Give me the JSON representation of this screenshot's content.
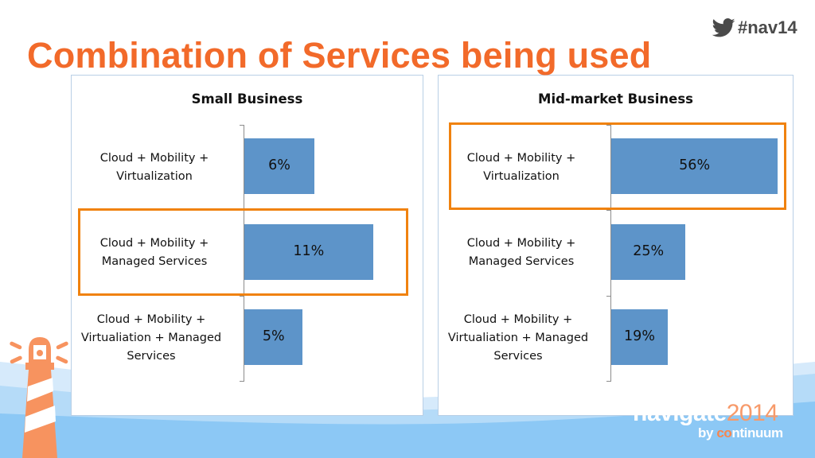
{
  "slide": {
    "title": "Combination of Services being used",
    "hashtag": "#nav14",
    "hashtag_icon": "twitter-bird-icon",
    "brand": {
      "name": "navigate",
      "year": "2014",
      "by": "by ",
      "company_accent": "co",
      "company_rest": "ntinuum"
    },
    "colors": {
      "title": "#f26a2a",
      "bar": "#5d94c9",
      "highlight": "#f0820f",
      "wave_light": "#d6eafb",
      "wave_dark": "#8cc8f5"
    }
  },
  "chart_data": [
    {
      "type": "bar",
      "orientation": "horizontal",
      "title": "Small Business",
      "categories": [
        "Cloud + Mobility +\nVirtualization",
        "Cloud + Mobility +\nManaged Services",
        "Cloud + Mobility +\nVirtualiation + Managed\nServices"
      ],
      "values": [
        6,
        11,
        5
      ],
      "data_labels": [
        "6%",
        "11%",
        "5%"
      ],
      "unit": "%",
      "xlim": [
        0,
        14.5
      ],
      "highlighted_category": 1,
      "grid": false,
      "legend": "none",
      "xlabel": "",
      "ylabel": ""
    },
    {
      "type": "bar",
      "orientation": "horizontal",
      "title": "Mid-market Business",
      "categories": [
        "Cloud + Mobility +\nVirtualization",
        "Cloud + Mobility +\nManaged Services",
        "Cloud + Mobility +\nVirtualiation + Managed\nServices"
      ],
      "values": [
        56,
        25,
        19
      ],
      "data_labels": [
        "56%",
        "25%",
        "19%"
      ],
      "unit": "%",
      "xlim": [
        0,
        57
      ],
      "highlighted_category": 0,
      "grid": false,
      "legend": "none",
      "xlabel": "",
      "ylabel": ""
    }
  ]
}
